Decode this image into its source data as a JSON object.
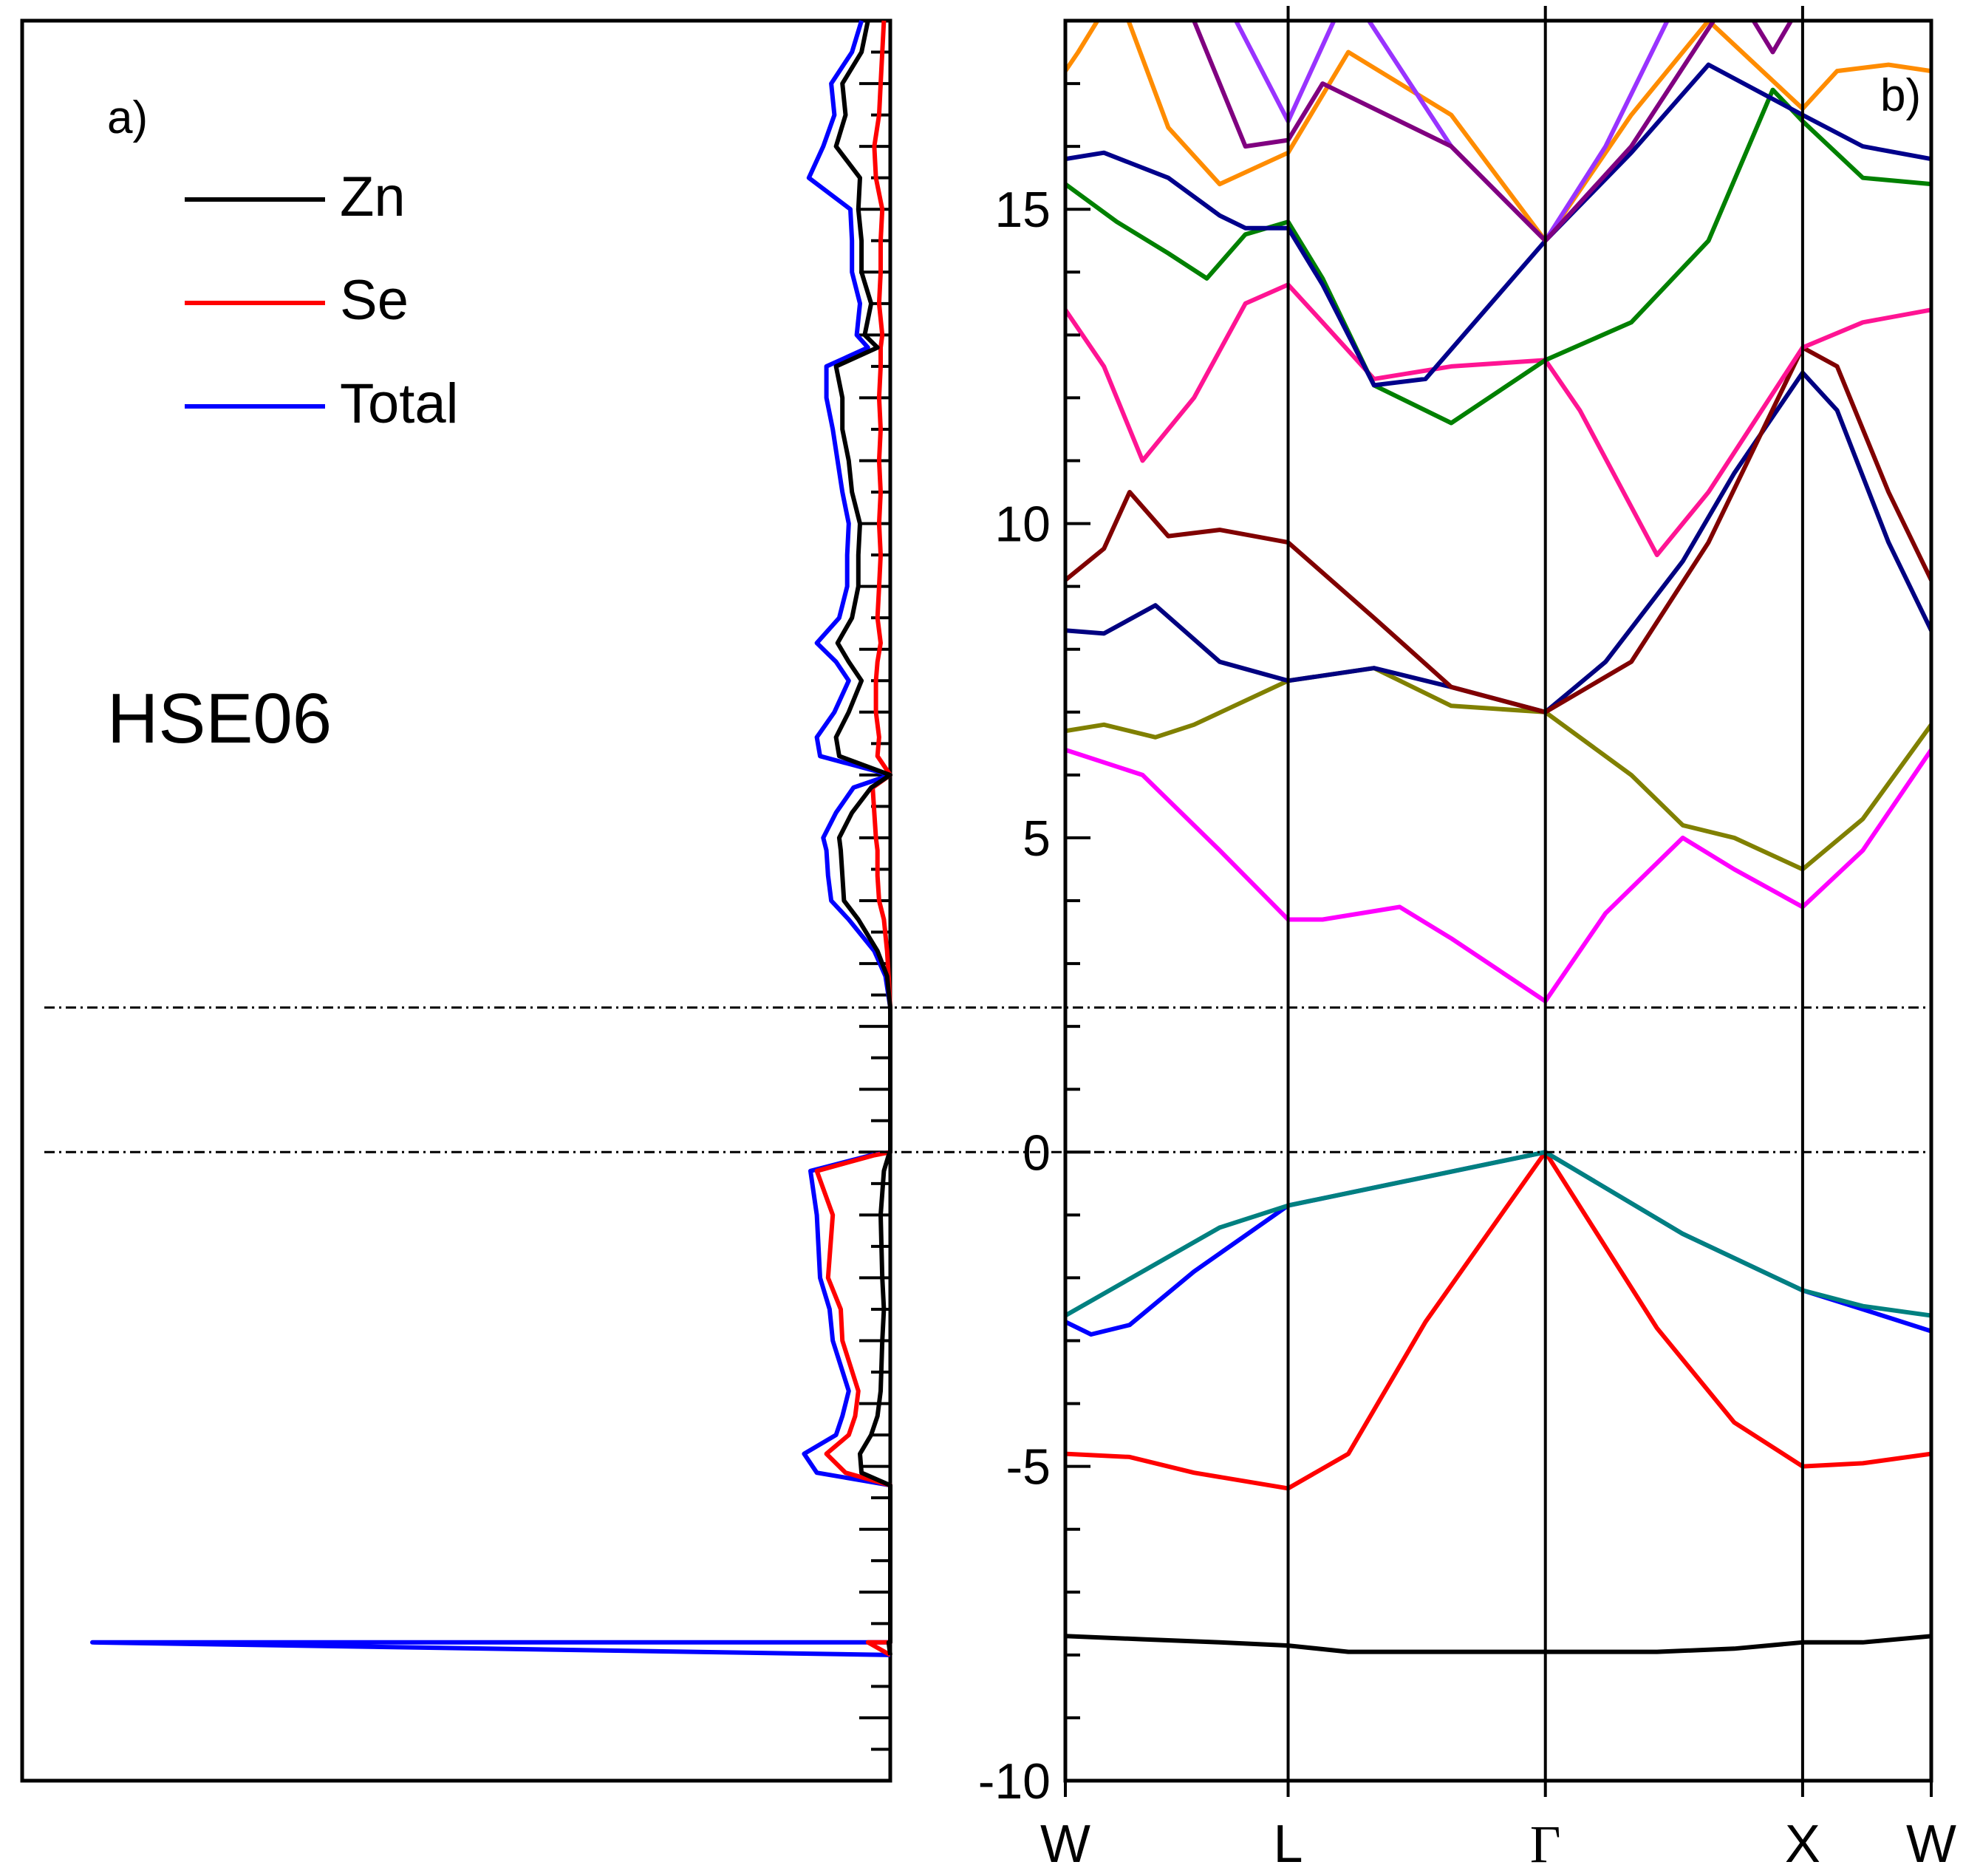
{
  "chart_data": [
    {
      "type": "line",
      "panel": "a)",
      "title": "HSE06",
      "xlabel": "",
      "ylabel": "",
      "ylim": [
        -10,
        18
      ],
      "orientation": "horizontal density vs energy",
      "legend": {
        "placement": "top-left",
        "entries": [
          "Zn",
          "Se",
          "Total"
        ]
      },
      "series": [
        {
          "name": "Zn",
          "color": "#000000",
          "energy": [
            -8.0,
            -7.8,
            -7.8,
            -5.3,
            -5.1,
            -4.8,
            -4.5,
            -4.2,
            -3.8,
            -3.0,
            -2.5,
            -2.0,
            -1.0,
            -0.3,
            -0.05,
            0.0,
            2.3,
            2.8,
            3.2,
            3.7,
            4.0,
            4.4,
            4.8,
            5.0,
            5.4,
            5.8,
            6.0,
            6.3,
            6.6,
            7.0,
            7.5,
            7.8,
            8.1,
            8.5,
            9.0,
            9.5,
            10.0,
            10.5,
            11.0,
            11.5,
            12.0,
            12.5,
            12.8,
            13.0,
            13.5,
            14.0,
            14.5,
            15.0,
            15.5,
            16.0,
            16.5,
            17.0,
            17.5,
            18.0
          ],
          "dos": [
            0,
            0.05,
            0,
            0,
            0.9,
            0.95,
            0.6,
            0.4,
            0.3,
            0.25,
            0.2,
            0.25,
            0.3,
            0.2,
            0.05,
            0,
            0,
            0.1,
            0.4,
            1.0,
            1.45,
            1.5,
            1.55,
            1.6,
            1.2,
            0.6,
            0,
            1.6,
            1.7,
            1.3,
            0.9,
            1.3,
            1.65,
            1.2,
            1.0,
            1.0,
            0.95,
            1.2,
            1.3,
            1.5,
            1.5,
            1.7,
            0.4,
            0.8,
            0.6,
            0.9,
            0.9,
            1.0,
            0.95,
            1.7,
            1.4,
            1.5,
            0.9,
            0.7
          ]
        },
        {
          "name": "Se",
          "color": "#ff0000",
          "energy": [
            -8.0,
            -7.8,
            -7.8,
            -5.3,
            -5.1,
            -4.8,
            -4.5,
            -4.2,
            -3.8,
            -3.0,
            -2.5,
            -2.0,
            -1.0,
            -0.3,
            -0.05,
            0.0,
            2.3,
            2.8,
            3.2,
            3.7,
            4.0,
            4.4,
            4.8,
            5.0,
            5.4,
            5.8,
            6.0,
            6.3,
            6.6,
            7.0,
            7.5,
            7.8,
            8.1,
            8.5,
            9.0,
            9.5,
            10.0,
            10.5,
            11.0,
            11.5,
            12.0,
            12.5,
            12.8,
            13.0,
            13.5,
            14.0,
            14.5,
            15.0,
            15.5,
            16.0,
            16.5,
            17.0,
            17.5,
            18.0
          ],
          "dos": [
            0,
            0.7,
            0,
            0,
            1.4,
            2.0,
            1.3,
            1.1,
            1.0,
            1.5,
            1.55,
            1.95,
            1.8,
            2.3,
            0.5,
            0,
            0,
            0.05,
            0.1,
            0.2,
            0.35,
            0.4,
            0.4,
            0.45,
            0.5,
            0.55,
            0,
            0.4,
            0.35,
            0.45,
            0.45,
            0.4,
            0.3,
            0.4,
            0.35,
            0.3,
            0.35,
            0.3,
            0.35,
            0.3,
            0.35,
            0.3,
            0.3,
            0.25,
            0.35,
            0.3,
            0.3,
            0.25,
            0.45,
            0.5,
            0.35,
            0.3,
            0.25,
            0.2
          ]
        },
        {
          "name": "Total",
          "color": "#0000ff",
          "energy": [
            -8.0,
            -7.8,
            -7.8,
            -5.3,
            -5.1,
            -4.8,
            -4.5,
            -4.2,
            -3.8,
            -3.0,
            -2.5,
            -2.0,
            -1.0,
            -0.3,
            -0.05,
            0.0,
            2.3,
            2.8,
            3.2,
            3.7,
            4.0,
            4.4,
            4.8,
            5.0,
            5.4,
            5.8,
            6.0,
            6.3,
            6.6,
            7.0,
            7.5,
            7.8,
            8.1,
            8.5,
            9.0,
            9.5,
            10.0,
            10.5,
            11.0,
            11.5,
            12.0,
            12.5,
            12.8,
            13.0,
            13.5,
            14.0,
            14.5,
            15.0,
            15.5,
            16.0,
            16.5,
            17.0,
            17.5,
            18.0
          ],
          "dos": [
            0,
            25,
            0,
            0,
            2.3,
            2.7,
            1.7,
            1.5,
            1.3,
            1.8,
            1.9,
            2.2,
            2.3,
            2.5,
            0.6,
            0,
            0,
            0.15,
            0.5,
            1.3,
            1.85,
            1.95,
            2.0,
            2.1,
            1.7,
            1.15,
            0,
            2.2,
            2.3,
            1.75,
            1.3,
            1.7,
            2.3,
            1.6,
            1.35,
            1.35,
            1.3,
            1.5,
            1.65,
            1.8,
            2.0,
            2.0,
            0.7,
            1.05,
            0.95,
            1.2,
            1.2,
            1.25,
            2.55,
            2.1,
            1.75,
            1.85,
            1.2,
            0.9
          ]
        }
      ]
    },
    {
      "type": "line",
      "panel": "b)",
      "title": "",
      "xlabel": "",
      "ylabel": "",
      "x_ticks": [
        "W",
        "L",
        "Γ",
        "X",
        "W"
      ],
      "x_positions": [
        0,
        0.866,
        1.866,
        2.866,
        3.366
      ],
      "ylim": [
        -10,
        18
      ],
      "y_ticks": [
        -10,
        -5,
        0,
        5,
        10,
        15
      ],
      "y_tick_labels": [
        "-10",
        "-5",
        "0",
        "5",
        "10",
        "15"
      ],
      "reference_lines": {
        "valence_band_max": 0.0,
        "conduction_band_min": 2.3
      },
      "bands": [
        {
          "color": "#000000",
          "x": [
            0,
            0.3,
            0.6,
            0.866,
            1.1,
            1.5,
            1.866,
            2.3,
            2.6,
            2.866,
            3.1,
            3.366
          ],
          "y": [
            -7.7,
            -7.75,
            -7.8,
            -7.85,
            -7.95,
            -7.95,
            -7.95,
            -7.95,
            -7.9,
            -7.8,
            -7.8,
            -7.7
          ]
        },
        {
          "color": "#ff0000",
          "x": [
            0,
            0.25,
            0.5,
            0.866,
            1.1,
            1.4,
            1.866,
            2.3,
            2.6,
            2.866,
            3.1,
            3.366
          ],
          "y": [
            -4.8,
            -4.85,
            -5.1,
            -5.35,
            -4.8,
            -2.7,
            0.0,
            -2.8,
            -4.3,
            -5.0,
            -4.95,
            -4.8
          ]
        },
        {
          "color": "#0000ff",
          "x": [
            0,
            0.1,
            0.25,
            0.5,
            0.866,
            1.866,
            2.4,
            2.866,
            3.1,
            3.366
          ],
          "y": [
            -2.7,
            -2.9,
            -2.75,
            -1.9,
            -0.85,
            0.0,
            -1.3,
            -2.2,
            -2.5,
            -2.85
          ]
        },
        {
          "color": "#008080",
          "x": [
            0,
            0.3,
            0.6,
            0.866,
            1.866,
            2.4,
            2.866,
            3.1,
            3.366
          ],
          "y": [
            -2.6,
            -1.9,
            -1.2,
            -0.85,
            0.0,
            -1.3,
            -2.2,
            -2.45,
            -2.6
          ]
        },
        {
          "color": "#ff00ff",
          "x": [
            0,
            0.3,
            0.6,
            0.866,
            1.0,
            1.3,
            1.5,
            1.866,
            2.1,
            2.4,
            2.6,
            2.866,
            3.1,
            3.366
          ],
          "y": [
            6.4,
            6.0,
            4.8,
            3.7,
            3.7,
            3.9,
            3.4,
            2.4,
            3.8,
            5.0,
            4.5,
            3.9,
            4.8,
            6.4
          ]
        },
        {
          "color": "#808000",
          "x": [
            0,
            0.15,
            0.35,
            0.5,
            0.866,
            1.2,
            1.5,
            1.866,
            2.2,
            2.4,
            2.6,
            2.866,
            3.1,
            3.366
          ],
          "y": [
            6.7,
            6.8,
            6.6,
            6.8,
            7.5,
            7.7,
            7.1,
            7.0,
            6.0,
            5.2,
            5.0,
            4.5,
            5.3,
            6.8
          ]
        },
        {
          "color": "#000080",
          "x": [
            0,
            0.15,
            0.35,
            0.6,
            0.866,
            1.2,
            1.5,
            1.866,
            2.1,
            2.4,
            2.6,
            2.866,
            3.0,
            3.2,
            3.366
          ],
          "y": [
            8.3,
            8.25,
            8.7,
            7.8,
            7.5,
            7.7,
            7.4,
            7.0,
            7.8,
            9.4,
            10.8,
            12.4,
            11.8,
            9.7,
            8.3
          ]
        },
        {
          "color": "#800000",
          "x": [
            0,
            0.15,
            0.25,
            0.4,
            0.6,
            0.866,
            1.2,
            1.5,
            1.866,
            2.2,
            2.5,
            2.866,
            3.0,
            3.2,
            3.366
          ],
          "y": [
            9.1,
            9.6,
            10.5,
            9.8,
            9.9,
            9.7,
            8.5,
            7.4,
            7.0,
            7.8,
            9.7,
            12.8,
            12.5,
            10.5,
            9.1
          ]
        },
        {
          "color": "#ff1493",
          "x": [
            0,
            0.15,
            0.3,
            0.5,
            0.7,
            0.866,
            1.0,
            1.2,
            1.5,
            1.866,
            2.0,
            2.3,
            2.5,
            2.866,
            3.1,
            3.366
          ],
          "y": [
            13.4,
            12.5,
            11.0,
            12.0,
            13.5,
            13.8,
            13.2,
            12.3,
            12.5,
            12.6,
            11.8,
            9.5,
            10.5,
            12.8,
            13.2,
            13.4
          ]
        },
        {
          "color": "#008000",
          "x": [
            0,
            0.2,
            0.4,
            0.55,
            0.7,
            0.866,
            1.0,
            1.2,
            1.5,
            1.866,
            2.2,
            2.5,
            2.75,
            2.866,
            3.1,
            3.366
          ],
          "y": [
            15.4,
            14.8,
            14.3,
            13.9,
            14.6,
            14.8,
            13.9,
            12.2,
            11.6,
            12.6,
            13.2,
            14.5,
            16.9,
            16.4,
            15.5,
            15.4
          ]
        },
        {
          "color": "#00008b",
          "x": [
            0,
            0.15,
            0.4,
            0.6,
            0.7,
            0.866,
            1.0,
            1.2,
            1.4,
            1.866,
            2.2,
            2.5,
            2.866,
            3.1,
            3.366
          ],
          "y": [
            15.8,
            15.9,
            15.5,
            14.9,
            14.7,
            14.7,
            13.8,
            12.2,
            12.3,
            14.5,
            15.9,
            17.3,
            16.5,
            16.0,
            15.8
          ]
        },
        {
          "color": "#ff8c00",
          "x": [
            0,
            0.05,
            0.2,
            0.4,
            0.6,
            0.866,
            1.1,
            1.5,
            1.866,
            2.2,
            2.5,
            2.866,
            3.0,
            3.2,
            3.366
          ],
          "y": [
            17.2,
            17.5,
            18.5,
            16.3,
            15.4,
            15.9,
            17.5,
            16.5,
            14.5,
            16.5,
            18.0,
            16.6,
            17.2,
            17.3,
            17.2
          ]
        },
        {
          "color": "#9933ff",
          "x": [
            0.6,
            0.866,
            1.1,
            1.5,
            1.866,
            2.1,
            2.4
          ],
          "y": [
            18.5,
            16.4,
            18.5,
            16.0,
            14.5,
            16.0,
            18.5
          ]
        },
        {
          "color": "#800080",
          "x": [
            0.45,
            0.7,
            0.866,
            1.0,
            1.5,
            1.866,
            2.2,
            2.6,
            2.75,
            2.85
          ],
          "y": [
            18.5,
            16.0,
            16.1,
            17.0,
            16.0,
            14.5,
            16.0,
            18.5,
            17.5,
            18.2
          ]
        }
      ]
    }
  ],
  "legend_labels": {
    "zn": "Zn",
    "se": "Se",
    "total": "Total"
  },
  "panel_labels": {
    "a": "a)",
    "b": "b)"
  },
  "method_label": "HSE06",
  "colors": {
    "zn": "#000000",
    "se": "#ff0000",
    "total": "#0000ff"
  }
}
